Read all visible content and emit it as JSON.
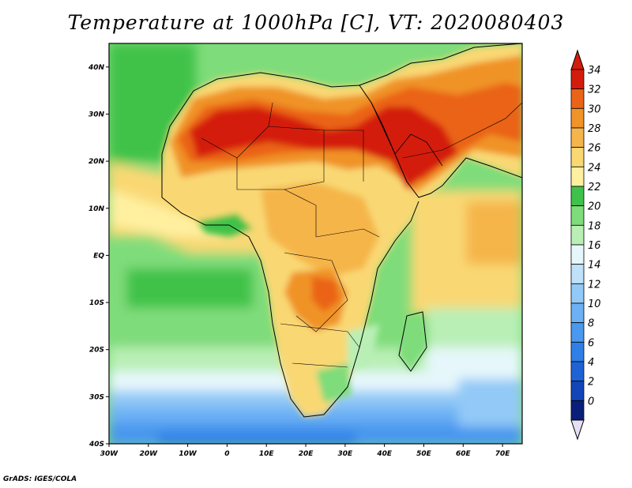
{
  "title": "Temperature at 1000hPa [C], VT: 2020080403",
  "credit": "GrADS: IGES/COLA",
  "lat_axis": {
    "ticks": [
      {
        "value": 40,
        "label": "40N"
      },
      {
        "value": 30,
        "label": "30N"
      },
      {
        "value": 20,
        "label": "20N"
      },
      {
        "value": 10,
        "label": "10N"
      },
      {
        "value": 0,
        "label": "EQ"
      },
      {
        "value": -10,
        "label": "10S"
      },
      {
        "value": -20,
        "label": "20S"
      },
      {
        "value": -30,
        "label": "30S"
      },
      {
        "value": -40,
        "label": "40S"
      }
    ]
  },
  "lon_axis": {
    "ticks": [
      {
        "value": -30,
        "label": "30W"
      },
      {
        "value": -20,
        "label": "20W"
      },
      {
        "value": -10,
        "label": "10W"
      },
      {
        "value": 0,
        "label": "0"
      },
      {
        "value": 10,
        "label": "10E"
      },
      {
        "value": 20,
        "label": "20E"
      },
      {
        "value": 30,
        "label": "30E"
      },
      {
        "value": 40,
        "label": "40E"
      },
      {
        "value": 50,
        "label": "50E"
      },
      {
        "value": 60,
        "label": "60E"
      },
      {
        "value": 70,
        "label": "70E"
      }
    ]
  },
  "colorbar": {
    "labels": [
      "0",
      "2",
      "4",
      "6",
      "8",
      "10",
      "12",
      "14",
      "16",
      "18",
      "20",
      "22",
      "24",
      "26",
      "28",
      "30",
      "32",
      "34"
    ],
    "colors": [
      "#0a1f7a",
      "#1245b8",
      "#1e63d6",
      "#2f7fe6",
      "#4a98ef",
      "#6cb1f4",
      "#93c9f7",
      "#bfe1f9",
      "#e6f7fb",
      "#b9efb5",
      "#7fdc7a",
      "#3fc24a",
      "#fff0a0",
      "#f9d873",
      "#f5b54a",
      "#f09328",
      "#ea6418",
      "#d41c0c"
    ],
    "over_color": "#d41c0c",
    "under_color": "#e6e0f7"
  }
}
